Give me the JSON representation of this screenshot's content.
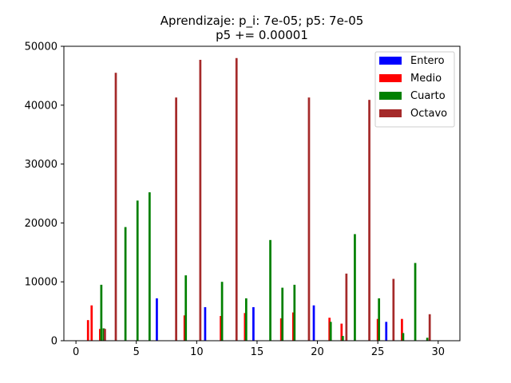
{
  "chart_data": {
    "type": "bar",
    "title_line1": "Aprendizaje: p_i: 7e-05; p5: 7e-05",
    "title_line2": "p5 += 0.00001",
    "xlabel": "",
    "ylabel": "",
    "xlim": [
      -1,
      31.8
    ],
    "ylim": [
      0,
      50000
    ],
    "xticks": [
      0,
      5,
      10,
      15,
      20,
      25,
      30
    ],
    "yticks": [
      0,
      10000,
      20000,
      30000,
      40000,
      50000
    ],
    "legend_position": "top-right",
    "bar_width": 0.18,
    "series": [
      {
        "name": "Entero",
        "color": "#0000ff",
        "points": [
          {
            "x": 6.7,
            "y": 7200
          },
          {
            "x": 10.7,
            "y": 5700
          },
          {
            "x": 14.7,
            "y": 5700
          },
          {
            "x": 19.7,
            "y": 6000
          },
          {
            "x": 25.7,
            "y": 3200
          }
        ]
      },
      {
        "name": "Medio",
        "color": "#ff0000",
        "points": [
          {
            "x": 1.0,
            "y": 3500
          },
          {
            "x": 1.3,
            "y": 6000
          },
          {
            "x": 2.0,
            "y": 2000
          },
          {
            "x": 9.0,
            "y": 4300
          },
          {
            "x": 12.0,
            "y": 4200
          },
          {
            "x": 14.0,
            "y": 4700
          },
          {
            "x": 17.0,
            "y": 3800
          },
          {
            "x": 18.0,
            "y": 4800
          },
          {
            "x": 21.0,
            "y": 3900
          },
          {
            "x": 22.0,
            "y": 2900
          },
          {
            "x": 25.0,
            "y": 3700
          },
          {
            "x": 27.0,
            "y": 3700
          }
        ]
      },
      {
        "name": "Cuarto",
        "color": "#008000",
        "points": [
          {
            "x": 2.1,
            "y": 9500
          },
          {
            "x": 2.3,
            "y": 2100
          },
          {
            "x": 4.1,
            "y": 19300
          },
          {
            "x": 5.1,
            "y": 23800
          },
          {
            "x": 6.1,
            "y": 25200
          },
          {
            "x": 9.1,
            "y": 11100
          },
          {
            "x": 12.1,
            "y": 10000
          },
          {
            "x": 14.1,
            "y": 7200
          },
          {
            "x": 16.1,
            "y": 17100
          },
          {
            "x": 17.1,
            "y": 9000
          },
          {
            "x": 18.1,
            "y": 9500
          },
          {
            "x": 21.1,
            "y": 3200
          },
          {
            "x": 22.1,
            "y": 800
          },
          {
            "x": 23.1,
            "y": 18100
          },
          {
            "x": 25.1,
            "y": 7200
          },
          {
            "x": 27.1,
            "y": 1300
          },
          {
            "x": 28.1,
            "y": 13200
          },
          {
            "x": 29.1,
            "y": 500
          }
        ]
      },
      {
        "name": "Octavo",
        "color": "#a52a2a",
        "points": [
          {
            "x": 2.4,
            "y": 2000
          },
          {
            "x": 3.3,
            "y": 45500
          },
          {
            "x": 8.3,
            "y": 41300
          },
          {
            "x": 10.3,
            "y": 47700
          },
          {
            "x": 13.3,
            "y": 48000
          },
          {
            "x": 19.3,
            "y": 41300
          },
          {
            "x": 22.4,
            "y": 11400
          },
          {
            "x": 24.3,
            "y": 40900
          },
          {
            "x": 26.3,
            "y": 10500
          },
          {
            "x": 29.3,
            "y": 4500
          }
        ]
      }
    ]
  }
}
